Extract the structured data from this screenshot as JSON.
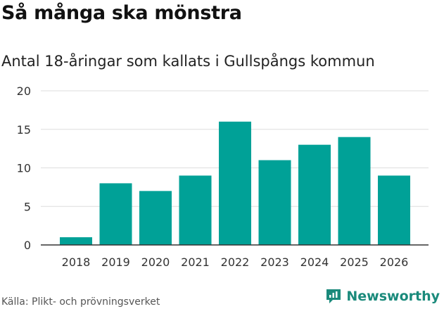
{
  "title": "Så många ska mönstra",
  "subtitle": "Antal 18-åringar som kallats i Gullspångs kommun",
  "source": "Källa: Plikt- och prövningsverket",
  "brand": "Newsworthy",
  "colors": {
    "bar": "#00a197",
    "grid": "#dddddd",
    "axis": "#333333",
    "brand": "#1a8a7b"
  },
  "chart_data": {
    "type": "bar",
    "title": "Så många ska mönstra",
    "subtitle": "Antal 18-åringar som kallats i Gullspångs kommun",
    "xlabel": "",
    "ylabel": "",
    "categories": [
      "2018",
      "2019",
      "2020",
      "2021",
      "2022",
      "2023",
      "2024",
      "2025",
      "2026"
    ],
    "values": [
      1,
      8,
      7,
      9,
      16,
      11,
      13,
      14,
      9
    ],
    "ylim": [
      0,
      20
    ],
    "yticks": [
      0,
      5,
      10,
      15,
      20
    ],
    "grid": true
  }
}
